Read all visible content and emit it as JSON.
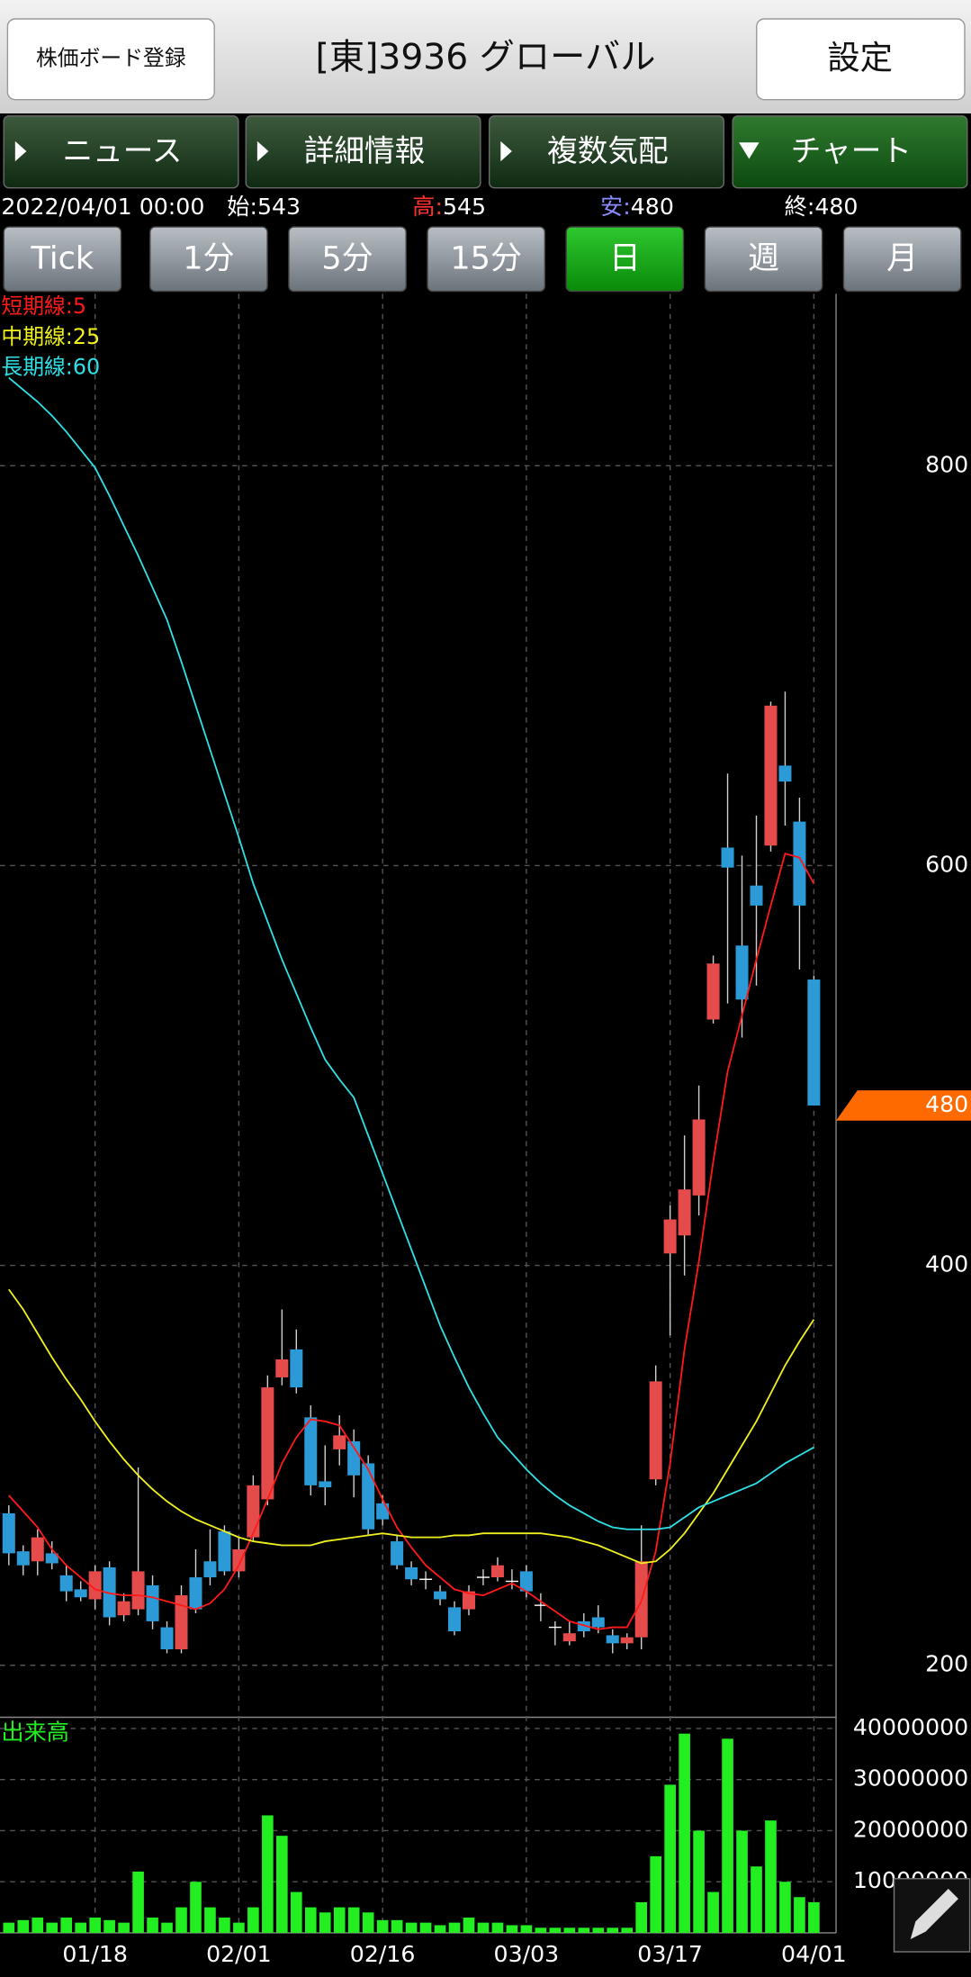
{
  "app": {
    "board_button": "株価ボード登録",
    "title": "[東]3936 グローバル",
    "settings_button": "設定",
    "tabs": [
      "ニュース",
      "詳細情報",
      "複数気配",
      "チャート"
    ],
    "active_tab": 3,
    "periods": [
      "Tick",
      "1分",
      "5分",
      "15分",
      "日",
      "週",
      "月"
    ],
    "active_period": 4,
    "date": "2022/04/01 00:00",
    "open_label": "始:",
    "high_label": "高",
    "low_label": "安",
    "close_label": "終:",
    "colon": ":"
  },
  "chart_data": [
    {
      "type": "candlestick",
      "categories": [
        null,
        null,
        null,
        null,
        null,
        null,
        "01/18",
        null,
        null,
        null,
        null,
        null,
        null,
        null,
        null,
        null,
        "02/01",
        null,
        null,
        null,
        null,
        null,
        null,
        null,
        null,
        null,
        "02/16",
        null,
        null,
        null,
        null,
        null,
        null,
        null,
        null,
        null,
        "03/03",
        null,
        null,
        null,
        null,
        null,
        null,
        null,
        null,
        null,
        "03/17",
        null,
        null,
        null,
        null,
        null,
        null,
        null,
        null,
        null,
        "04/01"
      ],
      "open": [
        276,
        257,
        252,
        256,
        245,
        238,
        233,
        249,
        225,
        228,
        240,
        219,
        208,
        244,
        252,
        267,
        247,
        264,
        283,
        344,
        358,
        324,
        292,
        308,
        312,
        301,
        281,
        262,
        249,
        243,
        237,
        229,
        228,
        244,
        244,
        242,
        247,
        230,
        219,
        212,
        222,
        224,
        215,
        211,
        214,
        293,
        406,
        415,
        435,
        523,
        609,
        560,
        590,
        610,
        650,
        622,
        543
      ],
      "high": [
        280,
        260,
        268,
        262,
        250,
        242,
        250,
        252,
        236,
        299,
        245,
        222,
        240,
        258,
        268,
        270,
        264,
        295,
        345,
        378,
        368,
        330,
        310,
        325,
        318,
        305,
        285,
        265,
        252,
        247,
        240,
        232,
        240,
        248,
        254,
        248,
        250,
        236,
        222,
        222,
        226,
        230,
        218,
        216,
        270,
        350,
        430,
        465,
        490,
        555,
        646,
        605,
        625,
        682,
        687,
        634,
        545
      ],
      "low": [
        250,
        245,
        245,
        248,
        232,
        232,
        228,
        220,
        222,
        225,
        218,
        206,
        206,
        226,
        240,
        245,
        244,
        262,
        280,
        340,
        336,
        285,
        280,
        300,
        284,
        265,
        270,
        248,
        240,
        238,
        230,
        215,
        225,
        240,
        242,
        238,
        234,
        222,
        210,
        210,
        214,
        216,
        206,
        208,
        208,
        290,
        365,
        395,
        425,
        521,
        531,
        514,
        540,
        607,
        620,
        548,
        480
      ],
      "close": [
        256,
        250,
        264,
        251,
        237,
        234,
        247,
        224,
        232,
        247,
        222,
        208,
        235,
        228,
        244,
        247,
        258,
        290,
        339,
        353,
        339,
        290,
        289,
        315,
        295,
        268,
        273,
        250,
        243,
        243,
        233,
        217,
        237,
        244,
        250,
        242,
        237,
        230,
        219,
        216,
        217,
        219,
        211,
        214,
        252,
        342,
        423,
        438,
        473,
        551,
        599,
        533,
        580,
        680,
        642,
        580,
        480
      ],
      "up_color": "#e54b4b",
      "down_color": "#2b9ad6",
      "series": [
        {
          "name": "短期線:5",
          "color": "#ff1a1a",
          "values": [
            285,
            277,
            269,
            258,
            250,
            244,
            238,
            236,
            235,
            235,
            234,
            232,
            230,
            228,
            231,
            238,
            250,
            266,
            283,
            301,
            314,
            323,
            322,
            320,
            309,
            298,
            283,
            269,
            259,
            250,
            244,
            238,
            236,
            235,
            238,
            241,
            237,
            232,
            227,
            222,
            220,
            218,
            219,
            219,
            232,
            257,
            301,
            358,
            402,
            452,
            497,
            525,
            553,
            580,
            606,
            604,
            591
          ]
        },
        {
          "name": "中期線:25",
          "color": "#f0f01e",
          "values": [
            388,
            378,
            366,
            354,
            343,
            333,
            322,
            312,
            303,
            295,
            288,
            282,
            277,
            273,
            270,
            267,
            264,
            262,
            261,
            260,
            260,
            260,
            262,
            263,
            264,
            265,
            266,
            265,
            264,
            264,
            264,
            265,
            265,
            266,
            266,
            266,
            266,
            266,
            265,
            264,
            262,
            260,
            257,
            254,
            251,
            252,
            258,
            266,
            276,
            286,
            298,
            310,
            322,
            336,
            350,
            362,
            373
          ]
        },
        {
          "name": "長期線:60",
          "color": "#2fe0e6",
          "values": [
            844,
            838,
            832,
            825,
            817,
            808,
            799,
            785,
            770,
            755,
            739,
            723,
            702,
            680,
            658,
            636,
            614,
            591,
            572,
            553,
            536,
            519,
            503,
            493,
            484,
            465,
            446,
            427,
            408,
            389,
            370,
            354,
            339,
            326,
            314,
            306,
            298,
            291,
            285,
            280,
            276,
            272,
            269,
            268,
            268,
            268,
            269,
            274,
            279,
            282,
            285,
            288,
            291,
            296,
            301,
            305,
            309
          ]
        }
      ],
      "ylim": [
        174,
        886
      ],
      "yticks": [
        200,
        400,
        600,
        800
      ],
      "grid": true
    },
    {
      "type": "bar",
      "title": "出来高",
      "color": "#22ee22",
      "values": [
        2000000,
        2500000,
        3000000,
        2000000,
        3000000,
        2000000,
        3000000,
        2500000,
        2000000,
        12000000,
        3000000,
        2000000,
        5000000,
        10000000,
        5000000,
        3000000,
        2000000,
        5000000,
        23000000,
        19000000,
        8000000,
        5000000,
        4000000,
        5000000,
        5000000,
        4000000,
        2500000,
        2500000,
        2000000,
        2000000,
        1500000,
        2000000,
        3000000,
        2000000,
        2000000,
        1500000,
        1500000,
        1000000,
        1000000,
        1000000,
        1000000,
        1000000,
        1000000,
        1000000,
        6000000,
        15000000,
        29000000,
        39000000,
        20000000,
        8000000,
        38000000,
        20000000,
        13000000,
        22000000,
        10000000,
        7000000,
        6000000
      ],
      "ylim": [
        0,
        42200000
      ],
      "yticks": [
        10000000,
        20000000,
        30000000,
        40000000
      ],
      "grid": true
    }
  ]
}
